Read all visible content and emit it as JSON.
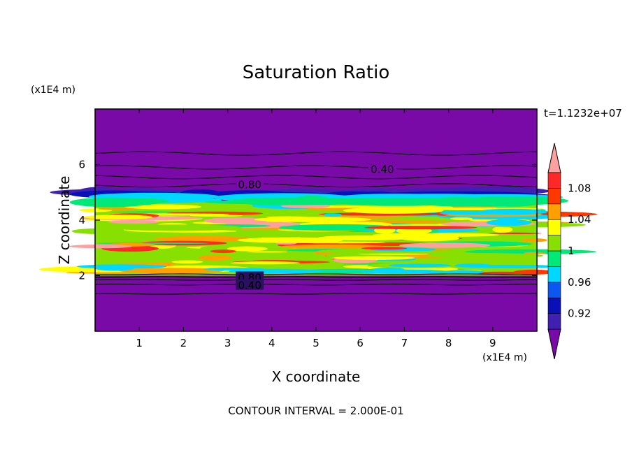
{
  "chart_data": {
    "type": "heatmap",
    "title": "Saturation Ratio",
    "xlabel": "X coordinate",
    "ylabel": "Z coordinate",
    "x_unit": "(x1E4 m)",
    "y_unit": "(x1E4 m)",
    "time_label": "t=1.1232e+07",
    "footer": "CONTOUR INTERVAL = 2.000E-01",
    "xlim": [
      0,
      10
    ],
    "ylim": [
      0,
      8
    ],
    "x_ticks": [
      "1",
      "2",
      "3",
      "4",
      "5",
      "6",
      "7",
      "8",
      "9"
    ],
    "y_ticks": [
      "2",
      "4",
      "6"
    ],
    "colorbar": {
      "levels": [
        0.9,
        0.92,
        0.94,
        0.96,
        0.98,
        1.0,
        1.02,
        1.04,
        1.06,
        1.08,
        1.1
      ],
      "tick_labels": [
        "0.92",
        "0.96",
        "1",
        "1.04",
        "1.08"
      ],
      "colors": [
        "#7a0aa8",
        "#4020b0",
        "#0a10b8",
        "#0a58f0",
        "#00d8ff",
        "#00e878",
        "#88e000",
        "#ffff00",
        "#ffa000",
        "#ff3800",
        "#ff2828",
        "#ffa0a0"
      ]
    },
    "contour_labels": [
      {
        "text": "0.40",
        "x": 6.5,
        "z": 5.85
      },
      {
        "text": "0.80",
        "x": 3.5,
        "z": 5.3
      },
      {
        "text": "0.80",
        "x": 3.5,
        "z": 1.95
      },
      {
        "text": "0.40",
        "x": 3.5,
        "z": 1.67
      }
    ],
    "contour_lines_z": [
      6.4,
      5.9,
      5.55,
      5.25,
      2.05,
      1.95,
      1.85,
      1.68,
      1.35
    ],
    "layers": [
      {
        "z0": 0,
        "z1": 2.0,
        "value": "below 0.92"
      },
      {
        "z0": 2.0,
        "z1": 4.65,
        "value": "0.96 to 1.1"
      },
      {
        "z0": 4.65,
        "z1": 5.0,
        "value": "0.92 to 0.98"
      },
      {
        "z0": 5.0,
        "z1": 8.0,
        "value": "below 0.92"
      }
    ]
  }
}
